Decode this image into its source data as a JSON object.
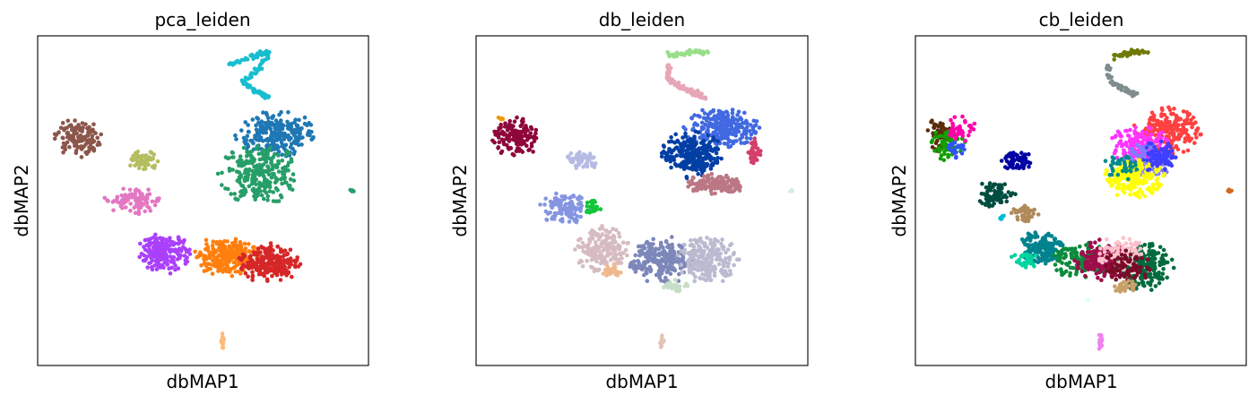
{
  "chart_data": [
    {
      "type": "scatter",
      "title": "pca_leiden",
      "xlabel": "dbMAP1",
      "ylabel": "dbMAP2",
      "xticks": [],
      "yticks": [],
      "grid": false,
      "legend": "none",
      "xlim": [
        0,
        1
      ],
      "ylim": [
        0,
        1
      ],
      "clusters": [
        {
          "color": "#17becf",
          "shape": "curve",
          "path": [
            [
              0.58,
              0.91
            ],
            [
              0.65,
              0.94
            ],
            [
              0.7,
              0.95
            ],
            [
              0.67,
              0.9
            ],
            [
              0.62,
              0.86
            ],
            [
              0.66,
              0.83
            ],
            [
              0.7,
              0.81
            ]
          ]
        },
        {
          "color": "#1f77b4",
          "shape": "blob",
          "cx": 0.72,
          "cy": 0.7,
          "rx": 0.12,
          "ry": 0.07,
          "n": 260
        },
        {
          "color": "#279e68",
          "shape": "blob",
          "cx": 0.67,
          "cy": 0.58,
          "rx": 0.12,
          "ry": 0.09,
          "n": 280
        },
        {
          "color": "#8c564b",
          "shape": "blob",
          "cx": 0.12,
          "cy": 0.69,
          "rx": 0.07,
          "ry": 0.06,
          "n": 130
        },
        {
          "color": "#b5bd61",
          "shape": "blob",
          "cx": 0.32,
          "cy": 0.62,
          "rx": 0.05,
          "ry": 0.03,
          "n": 60
        },
        {
          "color": "#e377c2",
          "shape": "blob",
          "cx": 0.29,
          "cy": 0.5,
          "rx": 0.09,
          "ry": 0.04,
          "n": 90
        },
        {
          "color": "#aa40fc",
          "shape": "blob",
          "cx": 0.38,
          "cy": 0.34,
          "rx": 0.08,
          "ry": 0.06,
          "n": 200
        },
        {
          "color": "#ff7f0e",
          "shape": "blob",
          "cx": 0.57,
          "cy": 0.33,
          "rx": 0.1,
          "ry": 0.06,
          "n": 230
        },
        {
          "color": "#d62728",
          "shape": "blob",
          "cx": 0.7,
          "cy": 0.31,
          "rx": 0.09,
          "ry": 0.06,
          "n": 220
        },
        {
          "color": "#ffbb78",
          "shape": "blob",
          "cx": 0.56,
          "cy": 0.07,
          "rx": 0.006,
          "ry": 0.03,
          "n": 15
        },
        {
          "color": "#279e68",
          "shape": "blob",
          "cx": 0.95,
          "cy": 0.53,
          "rx": 0.006,
          "ry": 0.004,
          "n": 4
        }
      ]
    },
    {
      "type": "scatter",
      "title": "db_leiden",
      "xlabel": "dbMAP1",
      "ylabel": "dbMAP2",
      "xticks": [],
      "yticks": [],
      "grid": false,
      "legend": "none",
      "xlim": [
        0,
        1
      ],
      "ylim": [
        0,
        1
      ],
      "clusters": [
        {
          "color": "#98df8a",
          "shape": "curve",
          "path": [
            [
              0.58,
              0.94
            ],
            [
              0.64,
              0.95
            ],
            [
              0.7,
              0.95
            ]
          ]
        },
        {
          "color": "#e7a6b6",
          "shape": "curve",
          "path": [
            [
              0.58,
              0.91
            ],
            [
              0.58,
              0.87
            ],
            [
              0.62,
              0.84
            ],
            [
              0.66,
              0.83
            ],
            [
              0.69,
              0.81
            ]
          ]
        },
        {
          "color": "#4169e1",
          "shape": "blob",
          "cx": 0.74,
          "cy": 0.72,
          "rx": 0.11,
          "ry": 0.06,
          "n": 230
        },
        {
          "color": "#023fa5",
          "shape": "blob",
          "cx": 0.65,
          "cy": 0.64,
          "rx": 0.09,
          "ry": 0.07,
          "n": 260
        },
        {
          "color": "#d33f6a",
          "shape": "blob",
          "cx": 0.84,
          "cy": 0.65,
          "rx": 0.02,
          "ry": 0.04,
          "n": 40
        },
        {
          "color": "#bb7784",
          "shape": "blob",
          "cx": 0.72,
          "cy": 0.55,
          "rx": 0.09,
          "ry": 0.03,
          "n": 150
        },
        {
          "color": "#8e063b",
          "shape": "blob",
          "cx": 0.12,
          "cy": 0.69,
          "rx": 0.07,
          "ry": 0.06,
          "n": 150
        },
        {
          "color": "#b5bbe3",
          "shape": "blob",
          "cx": 0.32,
          "cy": 0.62,
          "rx": 0.05,
          "ry": 0.03,
          "n": 60
        },
        {
          "color": "#8595e1",
          "shape": "blob",
          "cx": 0.27,
          "cy": 0.48,
          "rx": 0.08,
          "ry": 0.05,
          "n": 110
        },
        {
          "color": "#11c638",
          "shape": "blob",
          "cx": 0.35,
          "cy": 0.48,
          "rx": 0.025,
          "ry": 0.02,
          "n": 25
        },
        {
          "color": "#d6bcc0",
          "shape": "blob",
          "cx": 0.38,
          "cy": 0.35,
          "rx": 0.09,
          "ry": 0.07,
          "n": 190
        },
        {
          "color": "#7d87b9",
          "shape": "blob",
          "cx": 0.56,
          "cy": 0.32,
          "rx": 0.1,
          "ry": 0.07,
          "n": 230
        },
        {
          "color": "#babbd0",
          "shape": "blob",
          "cx": 0.7,
          "cy": 0.32,
          "rx": 0.09,
          "ry": 0.07,
          "n": 220
        },
        {
          "color": "#c6dec7",
          "shape": "blob",
          "cx": 0.6,
          "cy": 0.24,
          "rx": 0.04,
          "ry": 0.02,
          "n": 30
        },
        {
          "color": "#f0b98d",
          "shape": "blob",
          "cx": 0.41,
          "cy": 0.29,
          "rx": 0.03,
          "ry": 0.02,
          "n": 25
        },
        {
          "color": "#e1c5b8",
          "shape": "blob",
          "cx": 0.56,
          "cy": 0.07,
          "rx": 0.006,
          "ry": 0.03,
          "n": 15
        },
        {
          "color": "#d5eae7",
          "shape": "blob",
          "cx": 0.95,
          "cy": 0.53,
          "rx": 0.006,
          "ry": 0.004,
          "n": 4
        },
        {
          "color": "#ef9708",
          "shape": "blob",
          "cx": 0.08,
          "cy": 0.75,
          "rx": 0.015,
          "ry": 0.01,
          "n": 6
        }
      ]
    },
    {
      "type": "scatter",
      "title": "cb_leiden",
      "xlabel": "dbMAP1",
      "ylabel": "dbMAP2",
      "xticks": [],
      "yticks": [],
      "grid": false,
      "legend": "none",
      "xlim": [
        0,
        1
      ],
      "ylim": [
        0,
        1
      ],
      "clusters": [
        {
          "color": "#6f7a05",
          "shape": "curve",
          "path": [
            [
              0.6,
              0.94
            ],
            [
              0.65,
              0.95
            ],
            [
              0.7,
              0.95
            ]
          ]
        },
        {
          "color": "#7f8c8d",
          "shape": "curve",
          "path": [
            [
              0.58,
              0.91
            ],
            [
              0.59,
              0.86
            ],
            [
              0.63,
              0.84
            ],
            [
              0.67,
              0.82
            ]
          ]
        },
        {
          "color": "#ff4040",
          "shape": "blob",
          "cx": 0.76,
          "cy": 0.71,
          "rx": 0.1,
          "ry": 0.07,
          "n": 220
        },
        {
          "color": "#ff33ff",
          "shape": "blob",
          "cx": 0.68,
          "cy": 0.66,
          "rx": 0.09,
          "ry": 0.07,
          "n": 200
        },
        {
          "color": "#7f7fff",
          "shape": "blob",
          "cx": 0.7,
          "cy": 0.62,
          "rx": 0.07,
          "ry": 0.06,
          "n": 120
        },
        {
          "color": "#ffff00",
          "shape": "blob",
          "cx": 0.66,
          "cy": 0.57,
          "rx": 0.09,
          "ry": 0.06,
          "n": 200
        },
        {
          "color": "#3f3fff",
          "shape": "blob",
          "cx": 0.74,
          "cy": 0.63,
          "rx": 0.06,
          "ry": 0.05,
          "n": 80
        },
        {
          "color": "#008b8b",
          "shape": "blob",
          "cx": 0.62,
          "cy": 0.6,
          "rx": 0.05,
          "ry": 0.04,
          "n": 40
        },
        {
          "color": "#5a2d0c",
          "shape": "blob",
          "cx": 0.08,
          "cy": 0.7,
          "rx": 0.05,
          "ry": 0.05,
          "n": 60
        },
        {
          "color": "#11a000",
          "shape": "blob",
          "cx": 0.1,
          "cy": 0.67,
          "rx": 0.05,
          "ry": 0.05,
          "n": 60
        },
        {
          "color": "#ff00aa",
          "shape": "blob",
          "cx": 0.14,
          "cy": 0.72,
          "rx": 0.04,
          "ry": 0.04,
          "n": 40
        },
        {
          "color": "#3050ff",
          "shape": "blob",
          "cx": 0.12,
          "cy": 0.66,
          "rx": 0.03,
          "ry": 0.03,
          "n": 20
        },
        {
          "color": "#0000a3",
          "shape": "blob",
          "cx": 0.31,
          "cy": 0.62,
          "rx": 0.05,
          "ry": 0.03,
          "n": 70
        },
        {
          "color": "#004d40",
          "shape": "blob",
          "cx": 0.24,
          "cy": 0.52,
          "rx": 0.06,
          "ry": 0.04,
          "n": 70
        },
        {
          "color": "#b08a5a",
          "shape": "blob",
          "cx": 0.33,
          "cy": 0.46,
          "rx": 0.04,
          "ry": 0.03,
          "n": 40
        },
        {
          "color": "#00838f",
          "shape": "blob",
          "cx": 0.38,
          "cy": 0.36,
          "rx": 0.07,
          "ry": 0.05,
          "n": 150
        },
        {
          "color": "#00d3a0",
          "shape": "blob",
          "cx": 0.33,
          "cy": 0.32,
          "rx": 0.04,
          "ry": 0.03,
          "n": 40
        },
        {
          "color": "#0a8b3c",
          "shape": "blob",
          "cx": 0.5,
          "cy": 0.32,
          "rx": 0.08,
          "ry": 0.06,
          "n": 120
        },
        {
          "color": "#9c0d4b",
          "shape": "blob",
          "cx": 0.56,
          "cy": 0.32,
          "rx": 0.08,
          "ry": 0.06,
          "n": 180
        },
        {
          "color": "#006b3d",
          "shape": "blob",
          "cx": 0.69,
          "cy": 0.3,
          "rx": 0.09,
          "ry": 0.07,
          "n": 200
        },
        {
          "color": "#ffc0cb",
          "shape": "blob",
          "cx": 0.62,
          "cy": 0.34,
          "rx": 0.07,
          "ry": 0.05,
          "n": 90
        },
        {
          "color": "#7a0b28",
          "shape": "blob",
          "cx": 0.64,
          "cy": 0.3,
          "rx": 0.07,
          "ry": 0.05,
          "n": 80
        },
        {
          "color": "#c8a06a",
          "shape": "blob",
          "cx": 0.63,
          "cy": 0.24,
          "rx": 0.04,
          "ry": 0.02,
          "n": 30
        },
        {
          "color": "#00bcd4",
          "shape": "blob",
          "cx": 0.26,
          "cy": 0.45,
          "rx": 0.01,
          "ry": 0.01,
          "n": 6
        },
        {
          "color": "#ee82ee",
          "shape": "blob",
          "cx": 0.56,
          "cy": 0.07,
          "rx": 0.006,
          "ry": 0.03,
          "n": 15
        },
        {
          "color": "#d2691e",
          "shape": "blob",
          "cx": 0.95,
          "cy": 0.53,
          "rx": 0.006,
          "ry": 0.004,
          "n": 4
        },
        {
          "color": "#e0ffff",
          "shape": "blob",
          "cx": 0.52,
          "cy": 0.2,
          "rx": 0.005,
          "ry": 0.005,
          "n": 3
        }
      ]
    }
  ]
}
